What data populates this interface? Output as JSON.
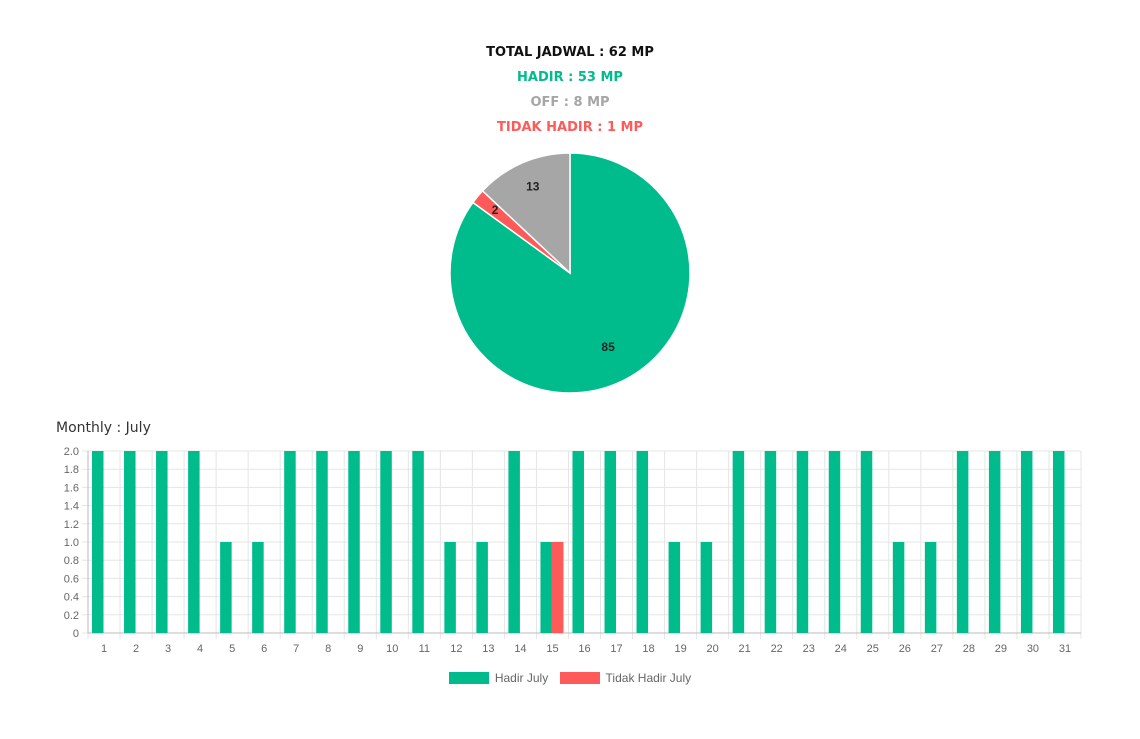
{
  "summary": {
    "total": "TOTAL JADWAL : 62 MP",
    "hadir": "HADIR : 53 MP",
    "off": "OFF : 8 MP",
    "tidak_hadir": "TIDAK HADIR : 1 MP"
  },
  "colors": {
    "hadir": "#00BC8C",
    "off": "#A6A6A6",
    "tidak_hadir": "#FF5A5A",
    "grid": "#E5E5E5",
    "tick_text": "#666666"
  },
  "monthly_title": "Monthly : July",
  "chart_data": [
    {
      "type": "pie",
      "labels": [
        "85",
        "2",
        "13"
      ],
      "values": [
        85,
        2,
        13
      ]
    },
    {
      "type": "bar",
      "categories": [
        "1",
        "2",
        "3",
        "4",
        "5",
        "6",
        "7",
        "8",
        "9",
        "10",
        "11",
        "12",
        "13",
        "14",
        "15",
        "16",
        "17",
        "18",
        "19",
        "20",
        "21",
        "22",
        "23",
        "24",
        "25",
        "26",
        "27",
        "28",
        "29",
        "30",
        "31"
      ],
      "series": [
        {
          "name": "Hadir July",
          "values": [
            2,
            2,
            2,
            2,
            1,
            1,
            2,
            2,
            2,
            2,
            2,
            1,
            1,
            2,
            1,
            2,
            2,
            2,
            1,
            1,
            2,
            2,
            2,
            2,
            2,
            1,
            1,
            2,
            2,
            2,
            2
          ]
        },
        {
          "name": "Tidak Hadir July",
          "values": [
            0,
            0,
            0,
            0,
            0,
            0,
            0,
            0,
            0,
            0,
            0,
            0,
            0,
            0,
            1,
            0,
            0,
            0,
            0,
            0,
            0,
            0,
            0,
            0,
            0,
            0,
            0,
            0,
            0,
            0,
            0
          ]
        }
      ],
      "ylim": [
        0,
        2
      ],
      "yticks": [
        "0",
        "0.2",
        "0.4",
        "0.6",
        "0.8",
        "1.0",
        "1.2",
        "1.4",
        "1.6",
        "1.8",
        "2.0"
      ],
      "grid": true,
      "legend": "bottom"
    }
  ]
}
